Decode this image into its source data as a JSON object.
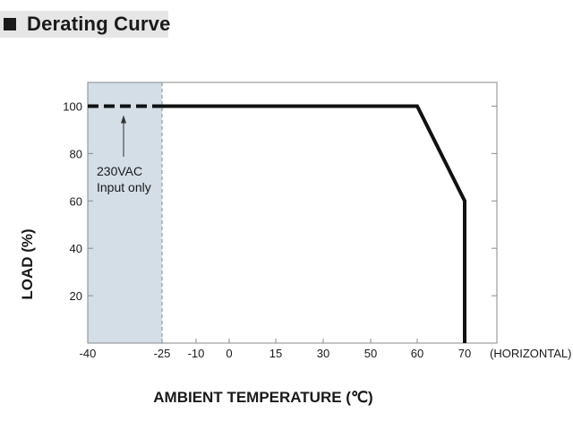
{
  "header": {
    "title": "Derating Curve"
  },
  "chart_data": {
    "type": "line",
    "xlabel": "AMBIENT TEMPERATURE (℃)",
    "ylabel": "LOAD (%)",
    "x_note": "(HORIZONTAL)",
    "x_ticks": [
      "-40",
      "-25",
      "-10",
      "0",
      "15",
      "30",
      "50",
      "60",
      "70"
    ],
    "y_ticks": [
      20,
      40,
      60,
      80,
      100
    ],
    "ylim": [
      0,
      110
    ],
    "grid": false,
    "series": [
      {
        "style": "dashed",
        "points": [
          [
            "-40",
            100
          ],
          [
            "-25",
            100
          ]
        ]
      },
      {
        "style": "solid",
        "points": [
          [
            "-25",
            100
          ],
          [
            "60",
            100
          ],
          [
            "70",
            60
          ],
          [
            "70",
            0
          ]
        ]
      }
    ],
    "shaded_region": {
      "x_from": "-40",
      "x_to": "-25"
    },
    "annotation": {
      "lines": [
        "230VAC",
        "Input only"
      ],
      "points_to": [
        "-35",
        100
      ]
    }
  }
}
